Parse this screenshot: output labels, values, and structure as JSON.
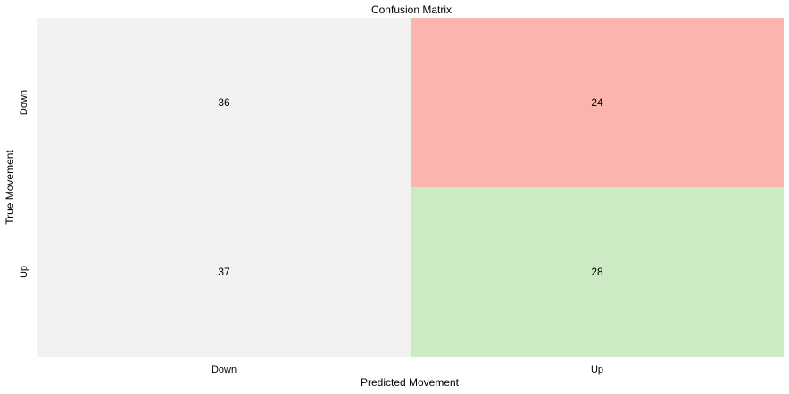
{
  "chart_data": {
    "type": "heatmap",
    "title": "Confusion Matrix",
    "xlabel": "Predicted Movement",
    "ylabel": "True Movement",
    "x_categories": [
      "Down",
      "Up"
    ],
    "y_categories": [
      "Down",
      "Up"
    ],
    "values": [
      [
        36,
        24
      ],
      [
        37,
        28
      ]
    ],
    "cell_colors": [
      [
        "#f2f2f2",
        "#fbb4ae"
      ],
      [
        "#f2f2f2",
        "#ccebc5"
      ]
    ],
    "grid": false
  }
}
